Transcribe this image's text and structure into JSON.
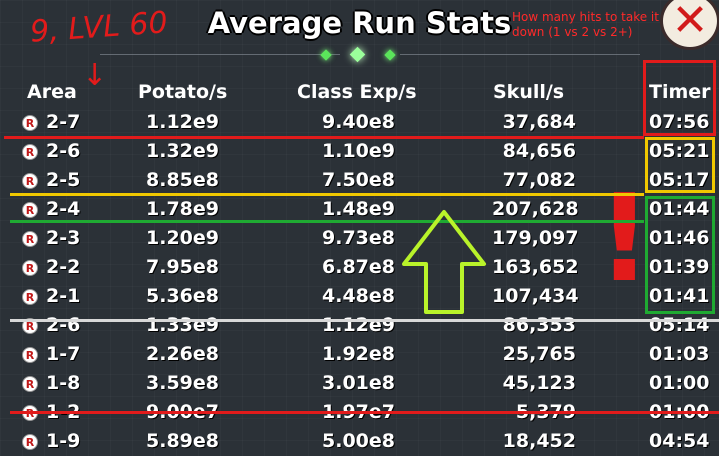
{
  "window": {
    "title": "Average Run Stats",
    "close_glyph": "✕"
  },
  "annotations": {
    "handwritten_label": "9, LVL 60",
    "question": "How many hits to take it down (1 vs 2 vs 2+)",
    "arrow_down": "↓",
    "exclamation": "!",
    "colors": {
      "red": "#e21b1b",
      "yellow": "#f0c800",
      "green": "#1faa32",
      "lime": "#b9f32a",
      "white": "#d8d8d8"
    }
  },
  "table": {
    "headers": {
      "area": "Area",
      "potato": "Potato/s",
      "exp": "Class Exp/s",
      "skull": "Skull/s",
      "timer": "Timer"
    },
    "rows": [
      {
        "area": "2-7",
        "potato": "1.12e9",
        "exp": "9.40e8",
        "skull": "37,684",
        "timer": "07:56"
      },
      {
        "area": "2-6",
        "potato": "1.32e9",
        "exp": "1.10e9",
        "skull": "84,656",
        "timer": "05:21"
      },
      {
        "area": "2-5",
        "potato": "8.85e8",
        "exp": "7.50e8",
        "skull": "77,082",
        "timer": "05:17"
      },
      {
        "area": "2-4",
        "potato": "1.78e9",
        "exp": "1.48e9",
        "skull": "207,628",
        "timer": "01:44"
      },
      {
        "area": "2-3",
        "potato": "1.20e9",
        "exp": "9.73e8",
        "skull": "179,097",
        "timer": "01:46"
      },
      {
        "area": "2-2",
        "potato": "7.95e8",
        "exp": "6.87e8",
        "skull": "163,652",
        "timer": "01:39"
      },
      {
        "area": "2-1",
        "potato": "5.36e8",
        "exp": "4.48e8",
        "skull": "107,434",
        "timer": "01:41"
      },
      {
        "area": "2-6",
        "potato": "1.33e9",
        "exp": "1.12e9",
        "skull": "86,353",
        "timer": "05:14"
      },
      {
        "area": "1-7",
        "potato": "2.26e8",
        "exp": "1.92e8",
        "skull": "25,765",
        "timer": "01:03"
      },
      {
        "area": "1-8",
        "potato": "3.59e8",
        "exp": "3.01e8",
        "skull": "45,123",
        "timer": "01:00"
      },
      {
        "area": "1-2",
        "potato": "9.00e7",
        "exp": "1.97e7",
        "skull": "5,379",
        "timer": "01:00"
      },
      {
        "area": "1-9",
        "potato": "5.89e8",
        "exp": "5.00e8",
        "skull": "18,452",
        "timer": "04:54"
      }
    ]
  }
}
